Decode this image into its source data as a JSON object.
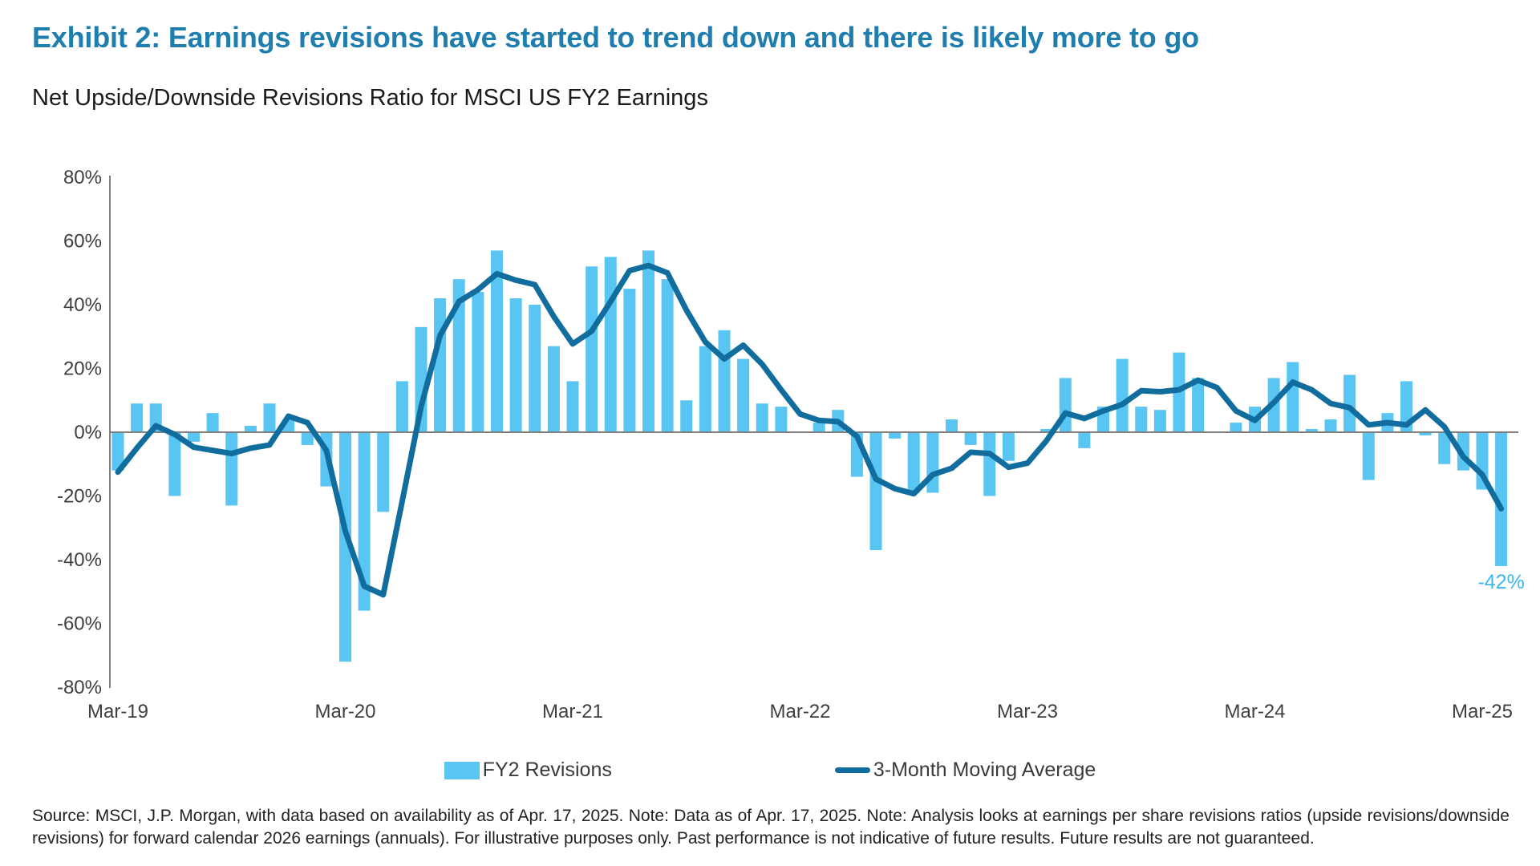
{
  "header": {
    "title": "Exhibit 2: Earnings revisions have started to trend down and there is likely more to go",
    "subtitle": "Net Upside/Downside Revisions Ratio for MSCI US FY2 Earnings"
  },
  "legend": {
    "bar_label": "FY2 Revisions",
    "line_label": "3-Month Moving Average"
  },
  "footer": {
    "note": "Source: MSCI, J.P. Morgan, with data based on availability as of Apr. 17, 2025. Note: Data as of Apr. 17, 2025. Note: Analysis looks at earnings per share revisions ratios (upside revisions/downside revisions) for forward calendar 2026 earnings (annuals). For illustrative purposes only. Past performance is not indicative of future results. Future results are not guaranteed."
  },
  "colors": {
    "title_blue": "#1F7EAE",
    "bar_blue": "#59C5F2",
    "line_blue": "#116D9E",
    "axis_gray": "#808080",
    "tick_text": "#3F3F3F",
    "annotation_blue": "#3DB7EE"
  },
  "chart_data": {
    "type": "bar+line",
    "title": "Net Upside/Downside Revisions Ratio for MSCI US FY2 Earnings",
    "xlabel": "",
    "ylabel": "",
    "ylim": [
      -80,
      80
    ],
    "grid": "none",
    "legend_position": "bottom",
    "categories": [
      "Mar-19",
      "Apr-19",
      "May-19",
      "Jun-19",
      "Jul-19",
      "Aug-19",
      "Sep-19",
      "Oct-19",
      "Nov-19",
      "Dec-19",
      "Jan-20",
      "Feb-20",
      "Mar-20",
      "Apr-20",
      "May-20",
      "Jun-20",
      "Jul-20",
      "Aug-20",
      "Sep-20",
      "Oct-20",
      "Nov-20",
      "Dec-20",
      "Jan-21",
      "Feb-21",
      "Mar-21",
      "Apr-21",
      "May-21",
      "Jun-21",
      "Jul-21",
      "Aug-21",
      "Sep-21",
      "Oct-21",
      "Nov-21",
      "Dec-21",
      "Jan-22",
      "Feb-22",
      "Mar-22",
      "Apr-22",
      "May-22",
      "Jun-22",
      "Jul-22",
      "Aug-22",
      "Sep-22",
      "Oct-22",
      "Nov-22",
      "Dec-22",
      "Jan-23",
      "Feb-23",
      "Mar-23",
      "Apr-23",
      "May-23",
      "Jun-23",
      "Jul-23",
      "Aug-23",
      "Sep-23",
      "Oct-23",
      "Nov-23",
      "Dec-23",
      "Jan-24",
      "Feb-24",
      "Mar-24",
      "Apr-24",
      "May-24",
      "Jun-24",
      "Jul-24",
      "Aug-24",
      "Sep-24",
      "Oct-24",
      "Nov-24",
      "Dec-24",
      "Jan-25",
      "Feb-25",
      "Mar-25",
      "Apr-25"
    ],
    "series": [
      {
        "name": "FY2 Revisions",
        "type": "bar",
        "values": [
          -12,
          9,
          9,
          -20,
          -3,
          6,
          -23,
          2,
          9,
          4,
          -4,
          -17,
          -72,
          -56,
          -25,
          16,
          33,
          42,
          48,
          44,
          57,
          42,
          40,
          27,
          16,
          52,
          55,
          45,
          57,
          48,
          10,
          27,
          32,
          23,
          9,
          8,
          0,
          3,
          7,
          -14,
          -37,
          -2,
          -19,
          -19,
          4,
          -4,
          -20,
          -9,
          0,
          1,
          17,
          -5,
          8,
          23,
          8,
          7,
          25,
          17,
          0,
          3,
          8,
          17,
          22,
          1,
          4,
          18,
          -15,
          6,
          16,
          -1,
          -10,
          -12,
          -18,
          -42
        ]
      },
      {
        "name": "3-Month Moving Average",
        "type": "line",
        "values": [
          -12.5,
          -5.0,
          2.0,
          -0.7,
          -4.7,
          -5.7,
          -6.7,
          -5.0,
          -4.0,
          5.0,
          3.0,
          -5.7,
          -31.0,
          -48.3,
          -51.0,
          -21.7,
          8.0,
          30.3,
          41.0,
          44.7,
          49.7,
          47.7,
          46.3,
          36.3,
          27.7,
          31.7,
          41.0,
          50.7,
          52.3,
          50.0,
          38.3,
          28.3,
          23.0,
          27.3,
          21.3,
          13.3,
          5.7,
          3.7,
          3.3,
          -1.3,
          -14.7,
          -17.7,
          -19.3,
          -13.3,
          -11.3,
          -6.3,
          -6.7,
          -11.0,
          -9.7,
          -2.7,
          6.0,
          4.3,
          6.7,
          8.7,
          13.0,
          12.7,
          13.3,
          16.3,
          14.0,
          6.7,
          3.7,
          9.3,
          15.7,
          13.3,
          9.0,
          7.7,
          2.3,
          3.0,
          2.3,
          7.0,
          1.7,
          -7.7,
          -13.3,
          -24.0
        ]
      }
    ],
    "x_tick_indices": [
      0,
      12,
      24,
      36,
      48,
      60,
      72
    ],
    "x_tick_labels": [
      "Mar-19",
      "Mar-20",
      "Mar-21",
      "Mar-22",
      "Mar-23",
      "Mar-24",
      "Mar-25"
    ],
    "y_tick_values": [
      80,
      60,
      40,
      20,
      0,
      -20,
      -40,
      -60,
      -80
    ],
    "y_tick_labels": [
      "80%",
      "60%",
      "40%",
      "20%",
      "0%",
      "-20%",
      "-40%",
      "-60%",
      "-80%"
    ],
    "annotation": {
      "text": "-42%",
      "index": 73,
      "value": -42
    }
  }
}
